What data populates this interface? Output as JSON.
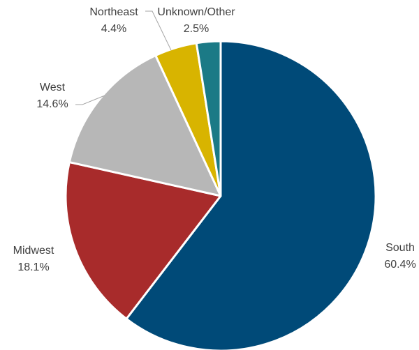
{
  "chart_data": {
    "type": "pie",
    "title": "",
    "start_angle_deg": 0,
    "direction": "clockwise",
    "slices": [
      {
        "label": "South",
        "value": 60.4,
        "value_label": "60.4%",
        "color": "#004a78"
      },
      {
        "label": "Midwest",
        "value": 18.1,
        "value_label": "18.1%",
        "color": "#a82b2b"
      },
      {
        "label": "West",
        "value": 14.6,
        "value_label": "14.6%",
        "color": "#b7b7b7"
      },
      {
        "label": "Northeast",
        "value": 4.4,
        "value_label": "4.4%",
        "color": "#d8b400"
      },
      {
        "label": "Unknown/Other",
        "value": 2.5,
        "value_label": "2.5%",
        "color": "#1b7a86"
      }
    ],
    "legend": "none",
    "data_labels": "outside with leader lines for small slices"
  }
}
